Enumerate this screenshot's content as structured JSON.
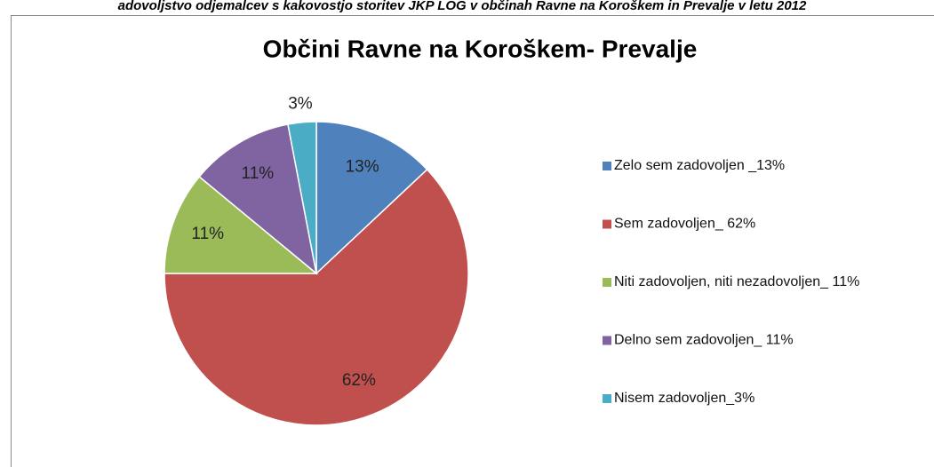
{
  "chart_data": {
    "type": "pie",
    "header": "adovoljstvo odjemalcev s kakovostjo storitev JKP LOG v občinah Ravne na Koroškem in Prevalje v letu 2012",
    "title": "Občini Ravne na Koroškem- Prevalje",
    "categories": [
      "Zelo sem zadovoljen  _13%",
      "Sem zadovoljen_ 62%",
      "Niti zadovoljen, niti nezadovoljen_ 11%",
      "Delno sem zadovoljen_ 11%",
      "Nisem zadovoljen_3%"
    ],
    "values": [
      13,
      62,
      11,
      11,
      3
    ],
    "value_labels": [
      "13%",
      "62%",
      "11%",
      "11%",
      "3%"
    ],
    "colors": [
      "#4f81bd",
      "#c0504d",
      "#9bbb59",
      "#8064a2",
      "#4bacc6"
    ],
    "legend": "right"
  }
}
